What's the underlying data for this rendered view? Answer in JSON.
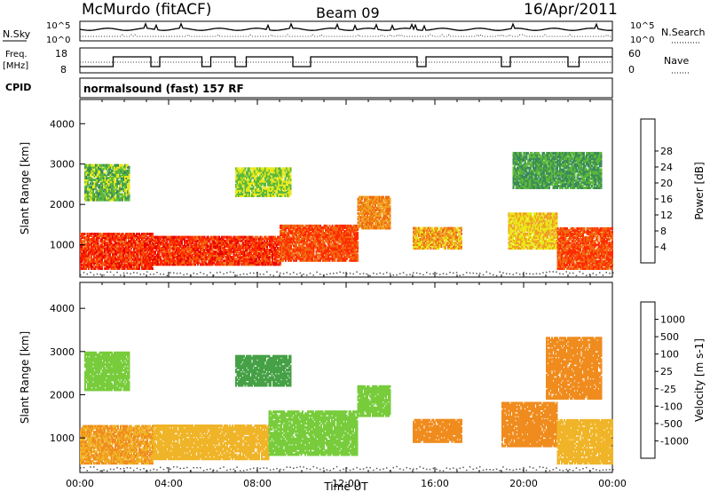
{
  "header": {
    "station": "McMurdo (fitACF)",
    "beam": "Beam 09",
    "date": "16/Apr/2011"
  },
  "top_panels": {
    "nsky_label": "N.Sky",
    "nsky_ticks": [
      "10^5",
      "10^0"
    ],
    "nsearch_label": "N.Search",
    "nsearch_ticks": [
      "10^5",
      "10^0"
    ],
    "freq_label": "Freq.",
    "freq_unit": "[MHz]",
    "freq_ticks": [
      "18",
      "8"
    ],
    "nave_label": "Nave",
    "nave_ticks": [
      "60",
      "0"
    ],
    "cpid_label": "CPID",
    "cpid_text": "normalsound (fast) 157 RF"
  },
  "chart_data": [
    {
      "type": "heatmap",
      "name": "power",
      "xlabel": "",
      "ylabel": "Slant Range [km]",
      "y_ticks": [
        "1000",
        "2000",
        "3000",
        "4000"
      ],
      "ylim": [
        200,
        4600
      ],
      "xlim": [
        "00:00",
        "24:00"
      ],
      "colorbar": {
        "label": "Power [dB]",
        "ticks": [
          "4",
          "8",
          "12",
          "16",
          "20",
          "24",
          "28"
        ],
        "colors": [
          "#1a1ae6",
          "#2e4fb0",
          "#3a8a5a",
          "#5cb83a",
          "#e8e81a",
          "#f0a020",
          "#f06a10",
          "#ff2a00",
          "#e60000"
        ]
      },
      "regions": [
        {
          "t0": 0.0,
          "t1": 3.3,
          "r0": 400,
          "r1": 1300,
          "value": 28
        },
        {
          "t0": 3.3,
          "t1": 9.0,
          "r0": 500,
          "r1": 1200,
          "value": 28
        },
        {
          "t0": 9.0,
          "t1": 12.5,
          "r0": 600,
          "r1": 1500,
          "value": 26
        },
        {
          "t0": 12.5,
          "t1": 14.0,
          "r0": 1400,
          "r1": 2200,
          "value": 22
        },
        {
          "t0": 15.0,
          "t1": 17.2,
          "r0": 900,
          "r1": 1400,
          "value": 20
        },
        {
          "t0": 19.3,
          "t1": 21.5,
          "r0": 900,
          "r1": 1800,
          "value": 18
        },
        {
          "t0": 21.5,
          "t1": 24.0,
          "r0": 400,
          "r1": 1400,
          "value": 26
        },
        {
          "t0": 0.2,
          "t1": 2.2,
          "r0": 2100,
          "r1": 3000,
          "value": 12
        },
        {
          "t0": 7.0,
          "t1": 9.5,
          "r0": 2200,
          "r1": 2900,
          "value": 14
        },
        {
          "t0": 19.5,
          "t1": 23.5,
          "r0": 2400,
          "r1": 3300,
          "value": 10
        }
      ]
    },
    {
      "type": "heatmap",
      "name": "velocity",
      "xlabel": "Time UT",
      "ylabel": "Slant Range [km]",
      "x_ticks": [
        "00:00",
        "04:00",
        "08:00",
        "12:00",
        "16:00",
        "20:00",
        "00:00"
      ],
      "y_ticks": [
        "1000",
        "2000",
        "3000",
        "4000"
      ],
      "ylim": [
        200,
        4600
      ],
      "xlim": [
        "00:00",
        "24:00"
      ],
      "colorbar": {
        "label": "Velocity [m s-1]",
        "ticks": [
          "1000",
          "500",
          "100",
          "25",
          "-25",
          "-100",
          "-500",
          "-1000"
        ],
        "colors": [
          "#1a46c8",
          "#2e7a5a",
          "#46a046",
          "#78cc3c",
          "#c8c8c8",
          "#f0b428",
          "#f08c1e",
          "#f05a14",
          "#e61414"
        ]
      },
      "regions": [
        {
          "t0": 0.0,
          "t1": 3.3,
          "r0": 400,
          "r1": 1300,
          "value": -100
        },
        {
          "t0": 3.3,
          "t1": 8.5,
          "r0": 500,
          "r1": 1300,
          "value": -60
        },
        {
          "t0": 8.5,
          "t1": 12.5,
          "r0": 600,
          "r1": 1600,
          "value": 40
        },
        {
          "t0": 12.5,
          "t1": 14.0,
          "r0": 1500,
          "r1": 2200,
          "value": 80
        },
        {
          "t0": 15.0,
          "t1": 17.2,
          "r0": 900,
          "r1": 1400,
          "value": -200
        },
        {
          "t0": 19.0,
          "t1": 21.5,
          "r0": 800,
          "r1": 1800,
          "value": -300
        },
        {
          "t0": 21.5,
          "t1": 24.0,
          "r0": 400,
          "r1": 1400,
          "value": -60
        },
        {
          "t0": 0.2,
          "t1": 2.2,
          "r0": 2100,
          "r1": 3000,
          "value": 60
        },
        {
          "t0": 7.0,
          "t1": 9.5,
          "r0": 2200,
          "r1": 2900,
          "value": 120
        },
        {
          "t0": 21.0,
          "t1": 23.5,
          "r0": 1900,
          "r1": 3300,
          "value": -150
        }
      ]
    }
  ]
}
